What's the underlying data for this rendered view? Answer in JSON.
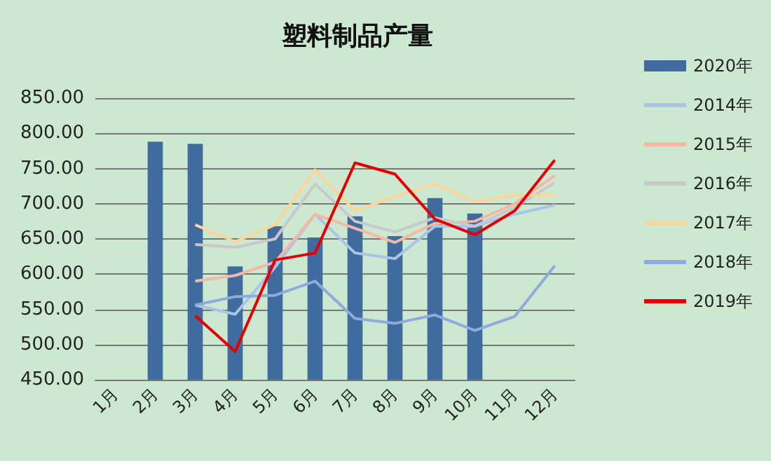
{
  "chart_data": {
    "type": "line",
    "title": "塑料制品产量",
    "categories": [
      "1月",
      "2月",
      "3月",
      "4月",
      "5月",
      "6月",
      "7月",
      "8月",
      "9月",
      "10月",
      "11月",
      "12月"
    ],
    "series": [
      {
        "name": "2020年",
        "type": "bar",
        "color": "#3f6b9e",
        "values": [
          null,
          788,
          785,
          611,
          668,
          652,
          682,
          654,
          708,
          686,
          null,
          null
        ]
      },
      {
        "name": "2014年",
        "color": "#a9c4eb",
        "values": [
          null,
          null,
          556,
          543,
          610,
          685,
          630,
          622,
          668,
          668,
          685,
          698
        ]
      },
      {
        "name": "2015年",
        "color": "#f4b8a4",
        "values": [
          null,
          null,
          590,
          598,
          617,
          685,
          665,
          645,
          672,
          675,
          700,
          740
        ]
      },
      {
        "name": "2016年",
        "color": "#c9c9c9",
        "values": [
          null,
          null,
          642,
          638,
          650,
          728,
          675,
          660,
          680,
          668,
          695,
          730
        ]
      },
      {
        "name": "2017年",
        "color": "#ffd699",
        "values": [
          null,
          null,
          670,
          646,
          670,
          748,
          690,
          710,
          728,
          703,
          712,
          712
        ]
      },
      {
        "name": "2018年",
        "color": "#8faadc",
        "values": [
          null,
          null,
          556,
          568,
          570,
          590,
          537,
          530,
          542,
          520,
          540,
          612
        ]
      },
      {
        "name": "2019年",
        "color": "#e00000",
        "values": [
          null,
          null,
          541,
          490,
          620,
          630,
          758,
          742,
          678,
          656,
          690,
          762
        ]
      }
    ],
    "ylim": [
      450,
      850
    ],
    "yticks": [
      {
        "value": 450,
        "label": "450.00"
      },
      {
        "value": 500,
        "label": "500.00"
      },
      {
        "value": 550,
        "label": "550.00"
      },
      {
        "value": 600,
        "label": "600.00"
      },
      {
        "value": 650,
        "label": "650.00"
      },
      {
        "value": 700,
        "label": "700.00"
      },
      {
        "value": 750,
        "label": "750.00"
      },
      {
        "value": 800,
        "label": "800.00"
      },
      {
        "value": 850,
        "label": "850.00"
      }
    ],
    "grid": "y",
    "legend": "right",
    "marker": "none",
    "line_style": "solid"
  }
}
